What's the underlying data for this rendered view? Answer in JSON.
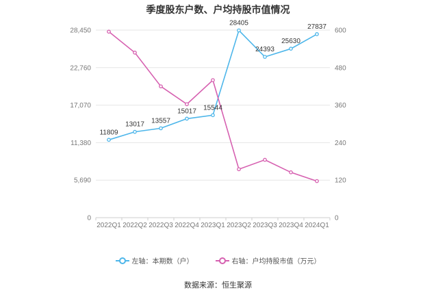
{
  "chart_data": {
    "type": "line",
    "title": "季度股东户数、户均持股市值情况",
    "categories": [
      "2022Q1",
      "2022Q2",
      "2022Q3",
      "2022Q4",
      "2023Q1",
      "2023Q2",
      "2023Q3",
      "2023Q4",
      "2024Q1"
    ],
    "left_axis": {
      "ylim": [
        0,
        28450
      ],
      "ticks": [
        "0",
        "5,690",
        "11,380",
        "17,070",
        "22,760",
        "28,450"
      ]
    },
    "right_axis": {
      "ylim": [
        0,
        600
      ],
      "ticks": [
        "0",
        "120",
        "240",
        "360",
        "480",
        "600"
      ]
    },
    "series": [
      {
        "name": "左轴：本期数（户）",
        "axis": "left",
        "color": "#4db6ea",
        "values": [
          11809,
          13017,
          13557,
          15017,
          15544,
          28405,
          24393,
          25630,
          27837
        ],
        "labels": [
          "11809",
          "13017",
          "13557",
          "15017",
          "15544",
          "28405",
          "24393",
          "25630",
          "27837"
        ]
      },
      {
        "name": "右轴：户均持股市值（万元）",
        "axis": "right",
        "color": "#d660b0",
        "values": [
          595,
          528,
          420,
          363,
          440,
          155,
          185,
          145,
          117
        ]
      }
    ],
    "grid": true,
    "legend": "bottom"
  },
  "footer": {
    "source": "数据来源：恒生聚源"
  }
}
